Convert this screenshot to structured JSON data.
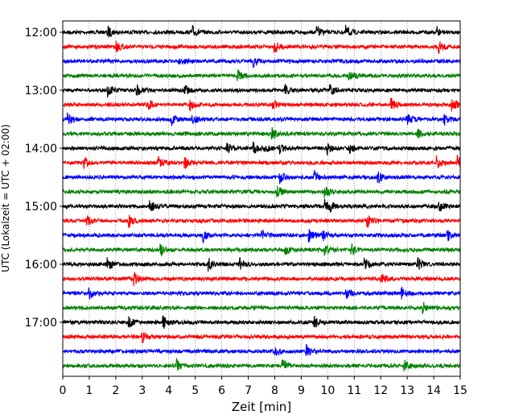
{
  "chart_data": {
    "type": "line",
    "title": "",
    "xlabel": "Zeit  [min]",
    "ylabel": "UTC (Lokalzeit = UTC + 02:00)",
    "xlim": [
      0,
      15
    ],
    "x_ticks": [
      "0",
      "1",
      "2",
      "3",
      "4",
      "5",
      "6",
      "7",
      "8",
      "9",
      "10",
      "11",
      "12",
      "13",
      "14",
      "15"
    ],
    "grid": "vertical dotted at each minute",
    "trace_interval_min": 15,
    "trace_colors": [
      "#000000",
      "#ff0000",
      "#0000ff",
      "#008000"
    ],
    "y_tick_labels": [
      "12:00",
      "13:00",
      "14:00",
      "15:00",
      "16:00",
      "17:00"
    ],
    "series": [
      {
        "start": "12:00",
        "events": [
          1.7,
          4.9,
          9.6,
          10.7,
          14.1
        ]
      },
      {
        "start": "12:15",
        "events": [
          2.0,
          8.0,
          14.2
        ]
      },
      {
        "start": "12:30",
        "events": [
          4.4,
          7.2
        ]
      },
      {
        "start": "12:45",
        "events": [
          6.6,
          10.8
        ]
      },
      {
        "start": "13:00",
        "events": [
          1.7,
          2.8,
          4.6,
          8.4,
          10.1
        ]
      },
      {
        "start": "13:15",
        "events": [
          3.2,
          4.8,
          7.9,
          12.4,
          14.7
        ]
      },
      {
        "start": "13:30",
        "events": [
          0.2,
          4.1,
          4.9,
          13.0,
          14.4
        ]
      },
      {
        "start": "13:45",
        "events": [
          7.9,
          13.4
        ]
      },
      {
        "start": "14:00",
        "events": [
          6.2,
          7.2,
          7.6,
          8.2,
          10.0,
          10.8
        ]
      },
      {
        "start": "14:15",
        "events": [
          0.8,
          3.6,
          4.6,
          14.1,
          14.9
        ]
      },
      {
        "start": "14:30",
        "events": [
          8.2,
          9.5,
          11.9
        ]
      },
      {
        "start": "14:45",
        "events": [
          8.1,
          9.9
        ]
      },
      {
        "start": "15:00",
        "events": [
          3.3,
          9.9,
          10.1,
          14.2
        ]
      },
      {
        "start": "15:15",
        "events": [
          0.9,
          2.5,
          11.5
        ]
      },
      {
        "start": "15:30",
        "events": [
          5.3,
          7.5,
          9.3,
          9.8,
          14.5
        ]
      },
      {
        "start": "15:45",
        "events": [
          3.7,
          8.4,
          9.9,
          10.9
        ]
      },
      {
        "start": "16:00",
        "events": [
          1.7,
          5.5,
          6.7,
          11.4,
          13.4
        ]
      },
      {
        "start": "16:15",
        "events": [
          2.7,
          12.0
        ]
      },
      {
        "start": "16:30",
        "events": [
          1.0,
          10.7,
          12.8
        ]
      },
      {
        "start": "16:45",
        "events": [
          13.6
        ]
      },
      {
        "start": "17:00",
        "events": [
          2.5,
          3.8,
          9.5
        ]
      },
      {
        "start": "17:15",
        "events": [
          3.0
        ]
      },
      {
        "start": "17:30",
        "events": [
          8.0,
          9.2
        ]
      },
      {
        "start": "17:45",
        "events": [
          4.3,
          8.3,
          12.9
        ]
      }
    ]
  }
}
